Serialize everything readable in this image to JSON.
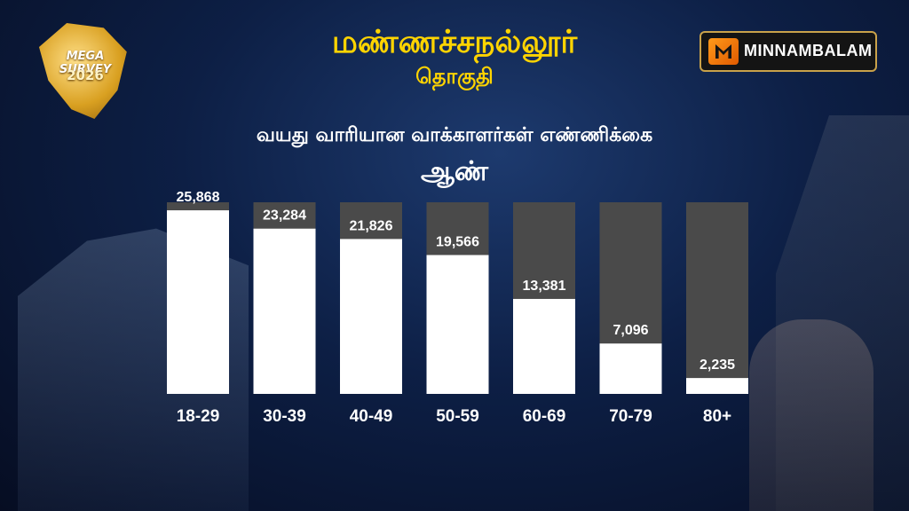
{
  "header": {
    "title": "மண்ணச்சநல்லூர்",
    "subtitle": "தொகுதி"
  },
  "badge": {
    "name": "MEGA SURVEY",
    "year": "2026"
  },
  "logo": {
    "text": "MINNAMBALAM",
    "icon": "minnambalam-logo-icon"
  },
  "colors": {
    "title": "#ffd400",
    "bar_fill": "#ffffff",
    "bar_track": "#4a4a4a",
    "background": "#0d1f45"
  },
  "chart_data": {
    "type": "bar",
    "title": "வயது வாரியான வாக்காளர்கள் எண்ணிக்கை",
    "subtitle": "ஆண்",
    "categories": [
      "18-29",
      "30-39",
      "40-49",
      "50-59",
      "60-69",
      "70-79",
      "80+"
    ],
    "values": [
      25868,
      23284,
      21826,
      19566,
      13381,
      7096,
      2235
    ],
    "value_labels": [
      "25,868",
      "23,284",
      "21,826",
      "19,566",
      "13,381",
      "7,096",
      "2,235"
    ],
    "ylim": [
      0,
      27000
    ],
    "grid": false,
    "legend": "none"
  }
}
